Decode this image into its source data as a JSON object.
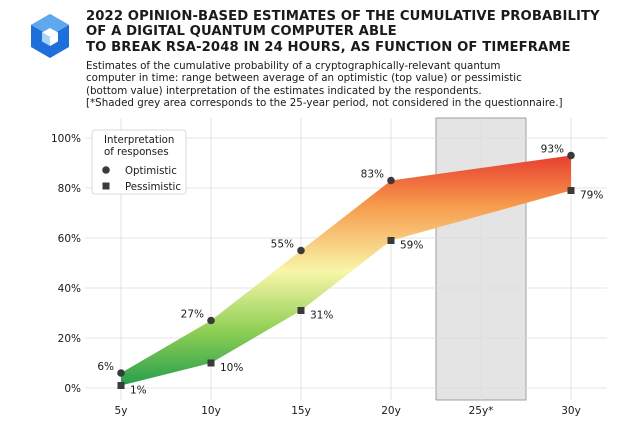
{
  "logo": {
    "icon": "hexagon-cube-logo-icon",
    "colors": [
      "#1e6fd9",
      "#5fa8ef",
      "#a9d3f7"
    ]
  },
  "header": {
    "title_lines": [
      "2022 OPINION-BASED ESTIMATES OF THE CUMULATIVE PROBABILITY",
      "OF A DIGITAL QUANTUM COMPUTER ABLE",
      "TO BREAK RSA-2048 IN 24 HOURS, AS FUNCTION OF TIMEFRAME"
    ],
    "subtitle_lines": [
      "Estimates of the cumulative probability of a cryptographically-relevant quantum",
      "computer in time: range between average of an optimistic (top value) or pessimistic",
      "(bottom value) interpretation of the estimates indicated by the respondents.",
      "[*Shaded grey area corresponds to the 25-year period, not considered in the questionnaire.]"
    ]
  },
  "chart_data": {
    "type": "area",
    "categories": [
      "5y",
      "10y",
      "15y",
      "20y",
      "25y*",
      "30y"
    ],
    "x": [
      5,
      10,
      15,
      20,
      30
    ],
    "series": [
      {
        "name": "Optimistic",
        "marker": "circle",
        "values": [
          6,
          27,
          55,
          83,
          93
        ],
        "labels": [
          "6%",
          "27%",
          "55%",
          "83%",
          "93%"
        ]
      },
      {
        "name": "Pessimistic",
        "marker": "square",
        "values": [
          1,
          10,
          31,
          59,
          79
        ],
        "labels": [
          "1%",
          "10%",
          "31%",
          "59%",
          "79%"
        ]
      }
    ],
    "yticks": [
      "0%",
      "20%",
      "40%",
      "60%",
      "80%",
      "100%"
    ],
    "ylim": [
      0,
      100
    ],
    "xlim": [
      3,
      32
    ],
    "shaded_region": [
      22.5,
      27.5
    ],
    "legend": {
      "title_lines": [
        "Interpretation",
        "of responses"
      ],
      "position": "top-left"
    },
    "gradient_colors": [
      "#1f9a4c",
      "#8fcf55",
      "#f8f6a8",
      "#f79a4c",
      "#e63a2e"
    ],
    "marker_color": "#3a3a3a",
    "grid": true
  }
}
